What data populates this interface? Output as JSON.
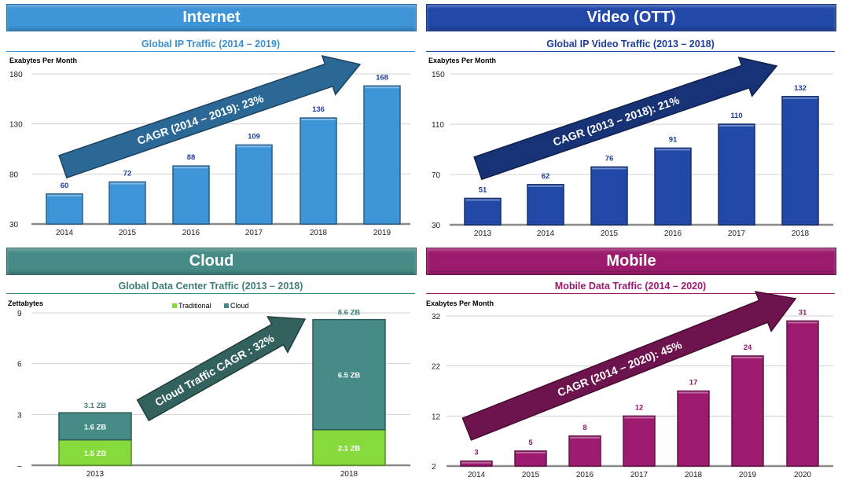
{
  "colors": {
    "internet": "#3d94d6",
    "video": "#2248a8",
    "cloud": "#478b86",
    "mobile": "#9c1b6e",
    "traditional": "#86da3c"
  },
  "panels": {
    "internet": {
      "header": "Internet",
      "subtitle": "Global IP Traffic (2014 – 2019)"
    },
    "video": {
      "header": "Video (OTT)",
      "subtitle": "Global IP Video Traffic (2013 – 2018)"
    },
    "cloud": {
      "header": "Cloud",
      "subtitle": "Global Data Center Traffic (2013 – 2018)"
    },
    "mobile": {
      "header": "Mobile",
      "subtitle": "Mobile Data Traffic (2014 – 2020)"
    }
  },
  "chart_data": [
    {
      "id": "internet",
      "type": "bar",
      "ylabel": "Exabytes Per Month",
      "ylim": [
        30,
        180
      ],
      "yticks": [
        "30",
        "80",
        "130",
        "180"
      ],
      "categories": [
        "2014",
        "2015",
        "2016",
        "2017",
        "2018",
        "2019"
      ],
      "values": [
        60,
        72,
        88,
        109,
        136,
        168
      ],
      "labels": [
        "60",
        "72",
        "88",
        "109",
        "136",
        "168"
      ],
      "annotation": "CAGR (2014 – 2019): 23%"
    },
    {
      "id": "video",
      "type": "bar",
      "ylabel": "Exabytes Per Month",
      "ylim": [
        30,
        150
      ],
      "yticks": [
        "30",
        "70",
        "110",
        "150"
      ],
      "categories": [
        "2013",
        "2014",
        "2015",
        "2016",
        "2017",
        "2018"
      ],
      "values": [
        51,
        62,
        76,
        91,
        110,
        132
      ],
      "labels": [
        "51",
        "62",
        "76",
        "91",
        "110",
        "132"
      ],
      "annotation": "CAGR (2013 – 2018): 21%"
    },
    {
      "id": "cloud",
      "type": "bar",
      "stacked": true,
      "ylabel": "Zettabytes",
      "ylim": [
        0,
        9
      ],
      "yticks": [
        "–",
        "3",
        "6",
        "9"
      ],
      "categories": [
        "2013",
        "2018"
      ],
      "legend": [
        "Traditional",
        "Cloud"
      ],
      "series": [
        {
          "name": "Traditional",
          "values": [
            1.5,
            2.1
          ],
          "labels": [
            "1.5 ZB",
            "2.1 ZB"
          ]
        },
        {
          "name": "Cloud",
          "values": [
            1.6,
            6.5
          ],
          "labels": [
            "1.6 ZB",
            "6.5 ZB"
          ]
        }
      ],
      "totals": [
        "3.1 ZB",
        "8.6 ZB"
      ],
      "annotation": "Cloud Traffic CAGR : 32%"
    },
    {
      "id": "mobile",
      "type": "bar",
      "ylabel": "Exabytes Per Month",
      "ylim": [
        2,
        32
      ],
      "yticks": [
        "2",
        "12",
        "22",
        "32"
      ],
      "categories": [
        "2014",
        "2015",
        "2016",
        "2017",
        "2018",
        "2019",
        "2020"
      ],
      "values": [
        3,
        5,
        8,
        12,
        17,
        24,
        31
      ],
      "labels": [
        "3",
        "5",
        "8",
        "12",
        "17",
        "24",
        "31"
      ],
      "annotation": "CAGR (2014 – 2020): 45%"
    }
  ]
}
